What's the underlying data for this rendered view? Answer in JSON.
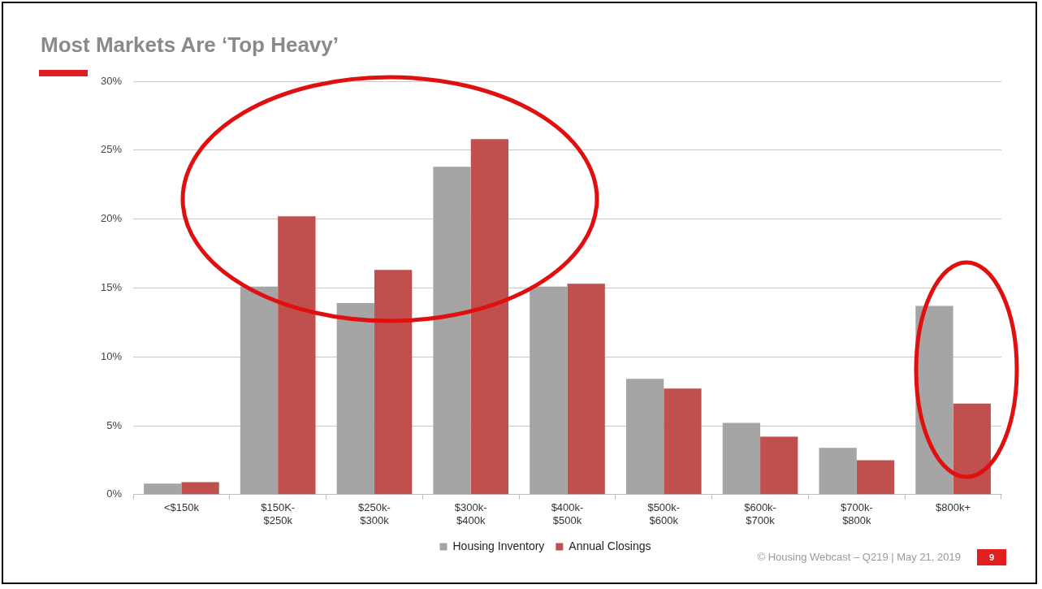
{
  "chart_data": {
    "type": "bar",
    "title": "Most Markets Are ‘Top Heavy’",
    "categories": [
      "<$150k",
      "$150K-$250k",
      "$250k-$300k",
      "$300k-$400k",
      "$400k-$500k",
      "$500k-$600k",
      "$600k-$700k",
      "$700k-$800k",
      "$800k+"
    ],
    "series": [
      {
        "name": "Housing Inventory",
        "color": "#a5a5a5",
        "values": [
          0.8,
          15.1,
          13.9,
          23.8,
          15.1,
          8.4,
          5.2,
          3.4,
          13.7
        ]
      },
      {
        "name": "Annual Closings",
        "color": "#c0504d",
        "values": [
          0.9,
          20.2,
          16.3,
          25.8,
          15.3,
          7.7,
          4.2,
          2.5,
          6.6
        ]
      }
    ],
    "ylim": [
      0,
      30
    ],
    "yticks": [
      {
        "value": 0,
        "label": "0%"
      },
      {
        "value": 5,
        "label": "5%"
      },
      {
        "value": 10,
        "label": "10%"
      },
      {
        "value": 15,
        "label": "15%"
      },
      {
        "value": 20,
        "label": "20%"
      },
      {
        "value": 25,
        "label": "25%"
      },
      {
        "value": 30,
        "label": "30%"
      }
    ],
    "grid": "y",
    "legend": "bottom",
    "annotations": [
      "© Housing Webcast – Q219 | May 21, 2019",
      "9"
    ]
  }
}
